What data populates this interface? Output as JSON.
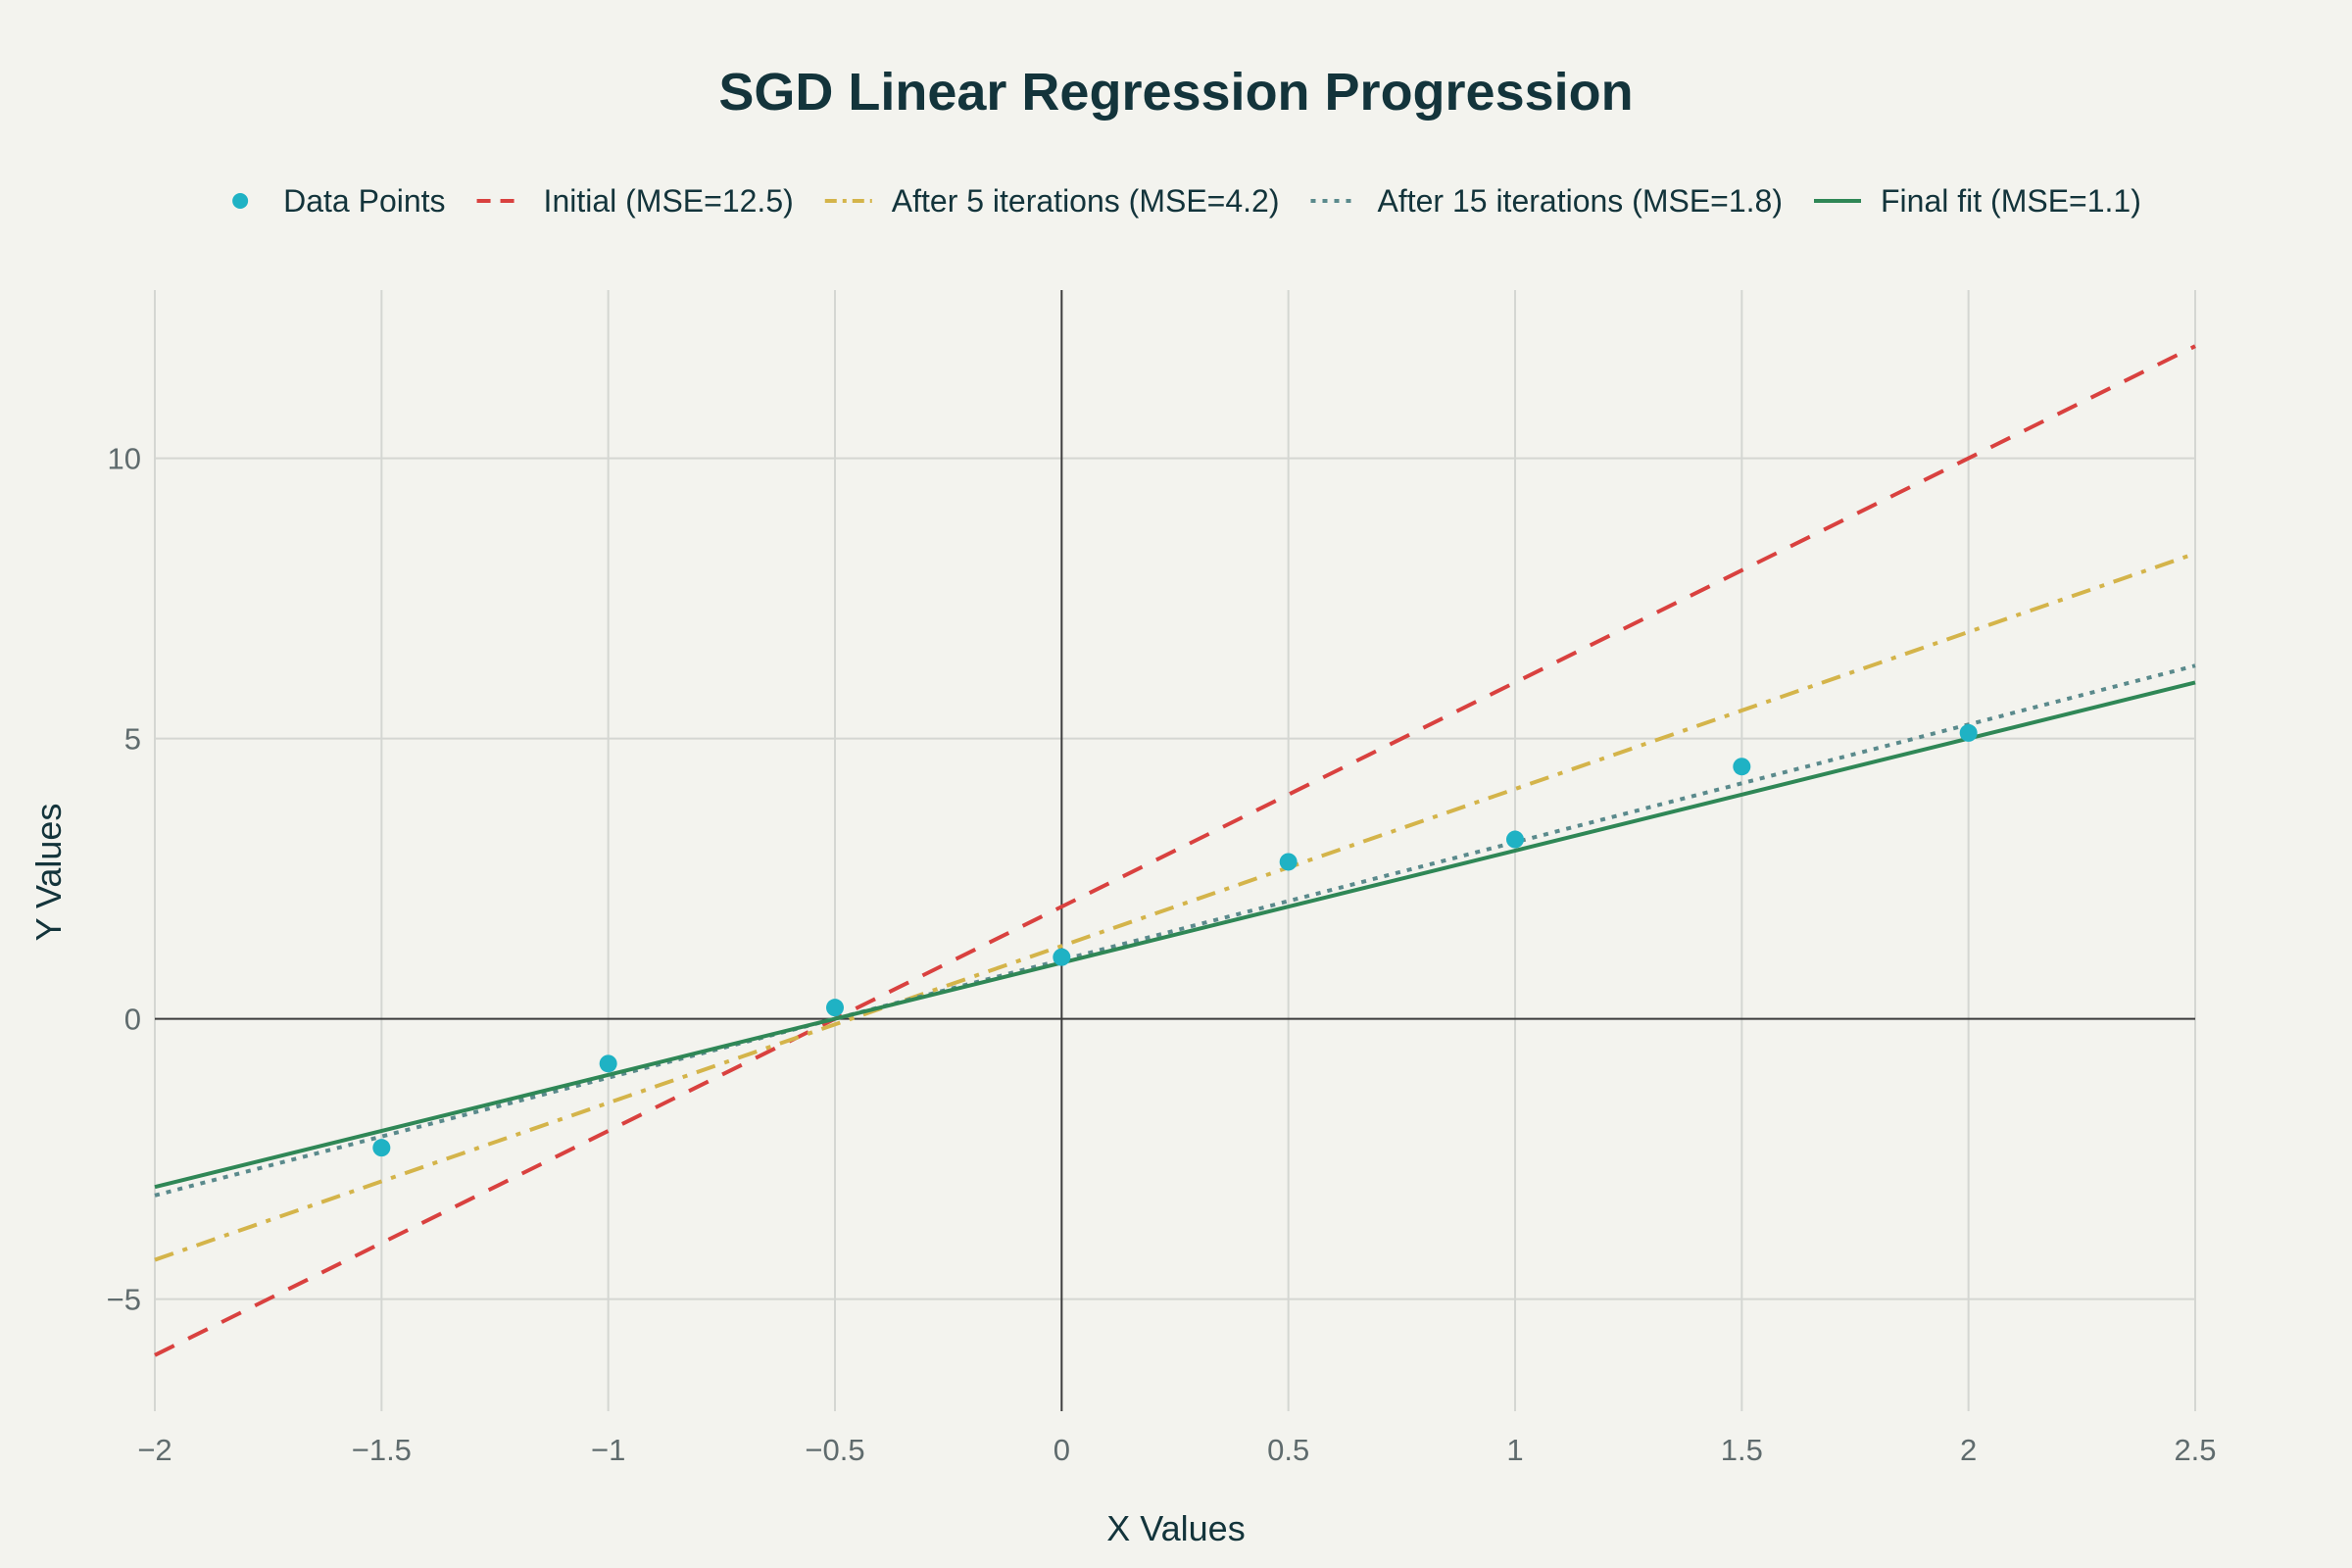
{
  "chart_data": {
    "type": "line",
    "title": "SGD Linear Regression Progression",
    "xlabel": "X Values",
    "ylabel": "Y Values",
    "xlim": [
      -2,
      2.5
    ],
    "ylim": [
      -7,
      13
    ],
    "grid": true,
    "legend_position": "top",
    "x_ticks": [
      -2,
      -1.5,
      -1,
      -0.5,
      0,
      0.5,
      1,
      1.5,
      2,
      2.5
    ],
    "x_tick_labels": [
      "−2",
      "−1.5",
      "−1",
      "−0.5",
      "0",
      "0.5",
      "1",
      "1.5",
      "2",
      "2.5"
    ],
    "y_ticks": [
      -5,
      0,
      5,
      10
    ],
    "y_tick_labels": [
      "−5",
      "0",
      "5",
      "10"
    ],
    "scatter": {
      "name": "Data Points",
      "color": "#1fb2c4",
      "x": [
        -1.5,
        -1,
        -0.5,
        0,
        0.5,
        1,
        1.5,
        2
      ],
      "y": [
        -2.3,
        -0.8,
        0.2,
        1.1,
        2.8,
        3.2,
        4.5,
        5.1
      ]
    },
    "series": [
      {
        "name": "Initial (MSE=12.5)",
        "color": "#d9413f",
        "dash": "dash",
        "x": [
          -2,
          2.5
        ],
        "y": [
          -6,
          12
        ]
      },
      {
        "name": "After 5 iterations (MSE=4.2)",
        "color": "#d4b44a",
        "dash": "dashdot",
        "x": [
          -2,
          2.5
        ],
        "y": [
          -4.3,
          8.3
        ]
      },
      {
        "name": "After 15 iterations (MSE=1.8)",
        "color": "#5a8a8c",
        "dash": "dot",
        "x": [
          -2,
          2.5
        ],
        "y": [
          -3.15,
          6.3
        ]
      },
      {
        "name": "Final fit (MSE=1.1)",
        "color": "#2f8756",
        "dash": "solid",
        "x": [
          -2,
          2.5
        ],
        "y": [
          -3,
          6
        ]
      }
    ]
  }
}
